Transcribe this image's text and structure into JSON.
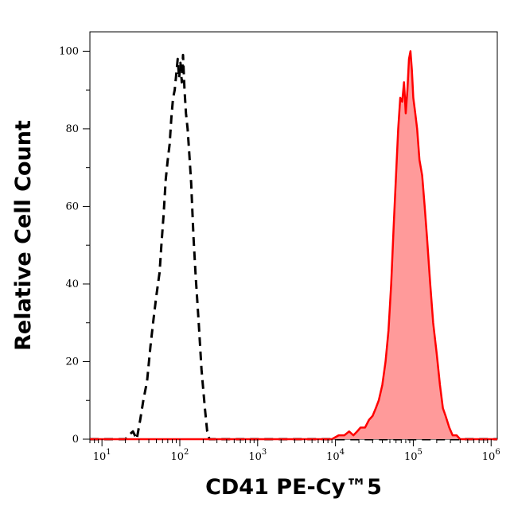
{
  "chart_data": {
    "type": "area",
    "xlabel": "CD41 PE-Cy™5",
    "ylabel": "Relative Cell Count",
    "x_scale": "log",
    "xlim": [
      7,
      1200000
    ],
    "ylim": [
      0,
      105
    ],
    "grid": false,
    "x_ticks": [
      {
        "value": 10,
        "base": "10",
        "exp": "1"
      },
      {
        "value": 100,
        "base": "10",
        "exp": "2"
      },
      {
        "value": 1000,
        "base": "10",
        "exp": "3"
      },
      {
        "value": 10000,
        "base": "10",
        "exp": "4"
      },
      {
        "value": 100000,
        "base": "10",
        "exp": "5"
      },
      {
        "value": 1000000,
        "base": "10",
        "exp": "6"
      }
    ],
    "y_ticks": [
      {
        "value": 0,
        "label": "0"
      },
      {
        "value": 20,
        "label": "20"
      },
      {
        "value": 40,
        "label": "40"
      },
      {
        "value": 60,
        "label": "60"
      },
      {
        "value": 80,
        "label": "80"
      },
      {
        "value": 100,
        "label": "100"
      }
    ],
    "series": [
      {
        "style": "dashed",
        "color": "#000000",
        "fill": "none",
        "x": [
          7,
          20,
          22,
          25,
          28,
          31,
          34,
          38,
          42,
          46,
          50,
          55,
          58,
          62,
          66,
          70,
          74,
          78,
          82,
          86,
          90,
          94,
          98,
          102,
          106,
          110,
          115,
          120,
          126,
          132,
          140,
          150,
          160,
          175,
          190,
          210,
          225,
          240,
          300,
          1200000
        ],
        "y": [
          0,
          0,
          1,
          2,
          0,
          5,
          10,
          15,
          24,
          31,
          37,
          43,
          50,
          58,
          67,
          72,
          76,
          83,
          88,
          90,
          94,
          98,
          93,
          97,
          92,
          99,
          90,
          84,
          80,
          74,
          66,
          52,
          42,
          30,
          18,
          8,
          2,
          0,
          0,
          0
        ]
      },
      {
        "style": "solid",
        "color": "#ff0000",
        "fill": "#ff9a9a",
        "x": [
          7,
          7000,
          9000,
          11000,
          13000,
          15000,
          17000,
          19000,
          21000,
          24000,
          27000,
          30000,
          33000,
          36000,
          40000,
          44000,
          48000,
          52000,
          56000,
          60000,
          64000,
          68000,
          72000,
          76000,
          80000,
          84000,
          88000,
          92000,
          96000,
          100000,
          106000,
          112000,
          120000,
          130000,
          140000,
          150000,
          165000,
          180000,
          200000,
          220000,
          240000,
          260000,
          290000,
          320000,
          360000,
          400000,
          450000,
          500000,
          1200000
        ],
        "y": [
          0,
          0,
          0,
          1,
          1,
          2,
          1,
          2,
          3,
          3,
          5,
          6,
          8,
          10,
          14,
          20,
          28,
          40,
          55,
          68,
          80,
          88,
          87,
          92,
          84,
          90,
          98,
          100,
          95,
          88,
          84,
          80,
          72,
          68,
          60,
          52,
          40,
          30,
          22,
          14,
          8,
          6,
          3,
          1,
          1,
          0,
          0,
          0,
          0
        ]
      }
    ]
  }
}
